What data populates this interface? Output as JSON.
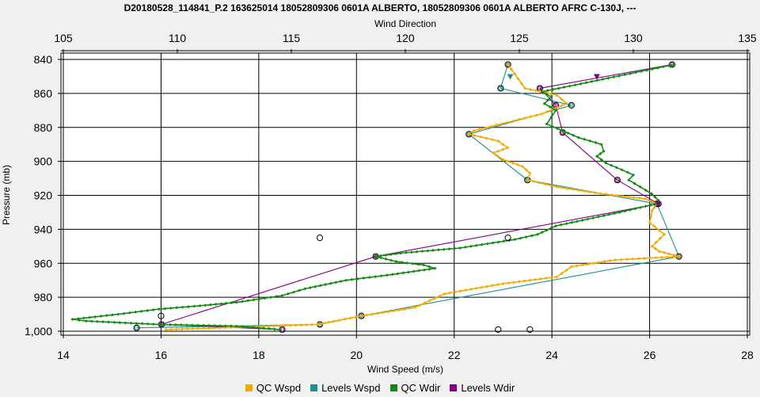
{
  "chart_data": {
    "type": "line",
    "title": "D20180528_114841_P.2 163625014 18052809306 0601A ALBERTO, 18052809306 0601A ALBERTO AFRC C-130J, ---",
    "top_axis": {
      "label": "Wind Direction",
      "range": [
        105,
        135
      ],
      "ticks": [
        "105",
        "110",
        "115",
        "120",
        "125",
        "130",
        "135"
      ]
    },
    "bottom_axis": {
      "label": "Wind Speed (m/s)",
      "range": [
        14,
        28
      ],
      "ticks": [
        "14",
        "16",
        "18",
        "20",
        "22",
        "24",
        "26",
        "28"
      ]
    },
    "y_axis": {
      "label": "Pressure (mb)",
      "range": [
        840,
        1000
      ],
      "inverted": true,
      "ticks": [
        "840",
        "860",
        "880",
        "900",
        "920",
        "940",
        "960",
        "980",
        "1,000"
      ]
    },
    "grid": true,
    "legend_position": "bottom",
    "series": [
      {
        "name": "QC Wspd",
        "axis": "bottom",
        "color": "#f5a800",
        "marker": "small-diamond",
        "points": [
          [
            23.1,
            843
          ],
          [
            23.45,
            857
          ],
          [
            24.1,
            861
          ],
          [
            24.3,
            866
          ],
          [
            23.8,
            872
          ],
          [
            23.1,
            877
          ],
          [
            22.4,
            882
          ],
          [
            22.3,
            884
          ],
          [
            22.9,
            888
          ],
          [
            23.1,
            892
          ],
          [
            22.8,
            895
          ],
          [
            23.0,
            899
          ],
          [
            23.4,
            903
          ],
          [
            23.55,
            907
          ],
          [
            23.5,
            911
          ],
          [
            24.1,
            915
          ],
          [
            25.0,
            919
          ],
          [
            25.9,
            922
          ],
          [
            26.15,
            925
          ],
          [
            26.05,
            929
          ],
          [
            26.0,
            936
          ],
          [
            26.3,
            943
          ],
          [
            26.05,
            950
          ],
          [
            26.2,
            953
          ],
          [
            26.6,
            956
          ],
          [
            25.3,
            958
          ],
          [
            24.4,
            962
          ],
          [
            24.1,
            968
          ],
          [
            23.0,
            972
          ],
          [
            21.8,
            978
          ],
          [
            21.2,
            986
          ],
          [
            20.1,
            991
          ],
          [
            19.2,
            996
          ],
          [
            17.2,
            998
          ],
          [
            16.1,
            999
          ]
        ]
      },
      {
        "name": "Levels Wspd",
        "axis": "bottom",
        "color": "#1f8f8f",
        "marker": "open-circle",
        "points": [
          [
            23.1,
            843
          ],
          [
            22.95,
            857
          ],
          [
            24.4,
            867
          ],
          [
            22.3,
            884
          ],
          [
            23.5,
            911
          ],
          [
            26.15,
            925
          ],
          [
            26.6,
            956
          ],
          [
            20.1,
            991
          ],
          [
            19.25,
            996
          ],
          [
            15.5,
            998
          ]
        ]
      },
      {
        "name": "QC Wdir",
        "axis": "top",
        "color": "#0e8a0e",
        "marker": "small-diamond",
        "points": [
          [
            131.8,
            843
          ],
          [
            126.0,
            859
          ],
          [
            126.4,
            862
          ],
          [
            126.1,
            866
          ],
          [
            126.6,
            870
          ],
          [
            126.4,
            874
          ],
          [
            126.2,
            878
          ],
          [
            126.9,
            882
          ],
          [
            127.6,
            886
          ],
          [
            128.6,
            890
          ],
          [
            128.7,
            894
          ],
          [
            128.4,
            897
          ],
          [
            128.8,
            901
          ],
          [
            129.5,
            905
          ],
          [
            130.0,
            908
          ],
          [
            129.8,
            911
          ],
          [
            130.3,
            915
          ],
          [
            130.8,
            919
          ],
          [
            131.1,
            923
          ],
          [
            131.0,
            925
          ],
          [
            129.4,
            930
          ],
          [
            128.0,
            934
          ],
          [
            126.6,
            938
          ],
          [
            125.8,
            943
          ],
          [
            124.8,
            946
          ],
          [
            122.4,
            951
          ],
          [
            119.8,
            954
          ],
          [
            118.7,
            956
          ],
          [
            119.6,
            959
          ],
          [
            120.8,
            961
          ],
          [
            121.3,
            963
          ],
          [
            119.2,
            967
          ],
          [
            117.4,
            970
          ],
          [
            115.6,
            975
          ],
          [
            114.6,
            979
          ],
          [
            112.6,
            983
          ],
          [
            111.0,
            985
          ],
          [
            109.2,
            987
          ],
          [
            107.4,
            990
          ],
          [
            105.4,
            993
          ],
          [
            106.0,
            994
          ],
          [
            109.2,
            996
          ],
          [
            112.6,
            997
          ],
          [
            114.5,
            999
          ]
        ]
      },
      {
        "name": "Levels Wdir",
        "axis": "top",
        "color": "#800080",
        "marker": "open-circle",
        "points": [
          [
            131.7,
            843
          ],
          [
            125.9,
            857
          ],
          [
            126.6,
            867
          ],
          [
            126.9,
            883
          ],
          [
            129.3,
            911
          ],
          [
            131.1,
            925
          ],
          [
            118.7,
            956
          ],
          [
            109.3,
            996
          ],
          [
            114.6,
            999
          ]
        ]
      }
    ],
    "extra_markers": [
      {
        "axis": "top",
        "marker": "triangle-down",
        "color": "#1f8f8f",
        "x": 124.6,
        "y": 850
      },
      {
        "axis": "top",
        "marker": "triangle-down",
        "color": "#800080",
        "x": 128.4,
        "y": 850
      },
      {
        "axis": "top",
        "marker": "triangle-down",
        "color": "#800080",
        "x": 131.1,
        "y": 925
      },
      {
        "axis": "bottom",
        "marker": "open-circle",
        "color": "#000000",
        "x": 19.25,
        "y": 945
      },
      {
        "axis": "bottom",
        "marker": "open-circle",
        "color": "#000000",
        "x": 23.1,
        "y": 945
      },
      {
        "axis": "bottom",
        "marker": "open-circle",
        "color": "#000000",
        "x": 16.0,
        "y": 991
      },
      {
        "axis": "bottom",
        "marker": "open-circle",
        "color": "#000000",
        "x": 22.9,
        "y": 999
      },
      {
        "axis": "bottom",
        "marker": "open-circle",
        "color": "#000000",
        "x": 23.55,
        "y": 999
      }
    ]
  }
}
